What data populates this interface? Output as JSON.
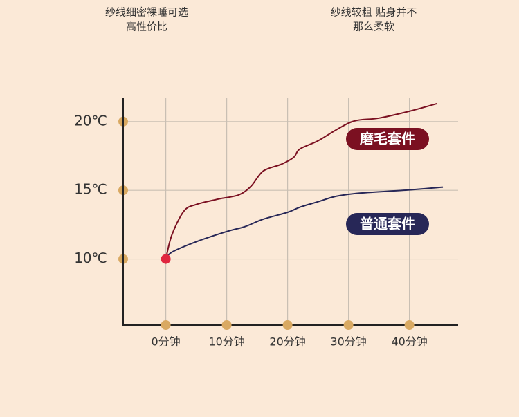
{
  "chart_data": {
    "type": "line",
    "annotations": [
      {
        "lines": [
          "纱线细密裸睡可选",
          "高性价比"
        ]
      },
      {
        "lines": [
          "纱线较粗 贴身并不",
          "那么柔软"
        ]
      }
    ],
    "series": [
      {
        "name": "磨毛套件",
        "color": "#7b1021",
        "x": [
          0,
          1,
          3,
          5,
          8,
          9,
          12,
          14,
          16,
          19,
          21,
          22,
          25,
          28,
          31,
          35,
          40,
          44.5
        ],
        "values": [
          10,
          11.76,
          13.5,
          13.97,
          14.3,
          14.4,
          14.67,
          15.3,
          16.4,
          16.9,
          17.4,
          18.0,
          18.6,
          19.4,
          20.05,
          20.25,
          20.75,
          21.3
        ]
      },
      {
        "name": "普通套件",
        "color": "#272757",
        "x": [
          0,
          1,
          5,
          10,
          13,
          16,
          20,
          22,
          25,
          28,
          32,
          40,
          45.5
        ],
        "values": [
          10,
          10.5,
          11.26,
          12.0,
          12.36,
          12.9,
          13.4,
          13.77,
          14.17,
          14.57,
          14.8,
          15.03,
          15.23
        ]
      }
    ],
    "xlim": [
      -7,
      48
    ],
    "ylim": [
      5.2,
      21.7
    ],
    "xticks": [
      {
        "value": 0,
        "label": "0分钟"
      },
      {
        "value": 10,
        "label": "10分钟"
      },
      {
        "value": 20,
        "label": "20分钟"
      },
      {
        "value": 30,
        "label": "30分钟"
      },
      {
        "value": 40,
        "label": "40分钟"
      }
    ],
    "yticks": [
      {
        "value": 10,
        "label": "10℃"
      },
      {
        "value": 15,
        "label": "15℃"
      },
      {
        "value": 20,
        "label": "20℃"
      }
    ],
    "grid": true
  }
}
